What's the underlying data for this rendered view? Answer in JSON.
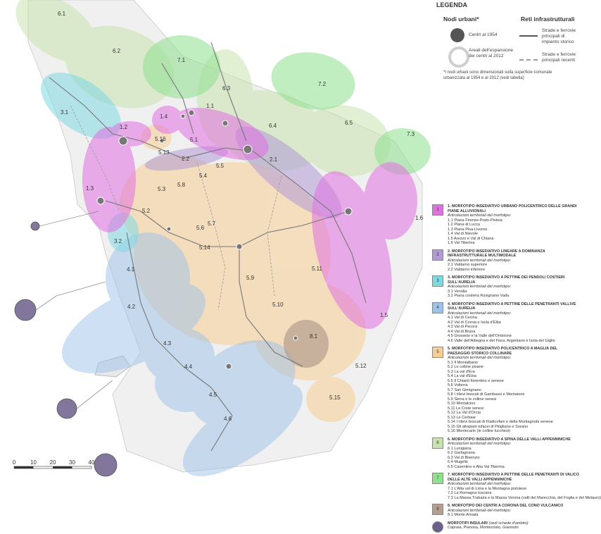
{
  "legend": {
    "title": "LEGENDA",
    "nodes_title": "Nodi urbani*",
    "nodes_1954": "Centri al 1954",
    "nodes_2012": "Areali dell'espansione dei centri al 2012",
    "networks_title": "Reti infrastrutturali",
    "networks_historic": "Strade e ferrovie principali di impianto storico",
    "networks_recent": "Strade e ferrovie principali recenti",
    "note": "*I nodi urbani sono dimensionati sulla superficie comunale urbanizzata al 1954 e al 2012 (vedi tabella)"
  },
  "scale": {
    "ticks": [
      "0",
      "10",
      "20",
      "30",
      "40"
    ]
  },
  "colors": {
    "m1": "#e070e0",
    "m2": "#b19ad6",
    "m3": "#7fd9e2",
    "m4": "#9cc2ea",
    "m5": "#f7cf95",
    "m6": "#c9e2b0",
    "m7": "#8fe08f",
    "m8": "#b59e8e",
    "insular": "#6d5f8c"
  },
  "map_labels": [
    "6.1",
    "6.2",
    "7.1",
    "6.3",
    "7.2",
    "3.1",
    "1.4",
    "1.1",
    "6.4",
    "6.5",
    "7.3",
    "1.2",
    "5.16",
    "5.13",
    "5.1",
    "2.2",
    "2.1",
    "5.5",
    "5.4",
    "1.3",
    "5.8",
    "5.3",
    "5.2",
    "5.6",
    "5.7",
    "1.6",
    "3.2",
    "5.14",
    "4.1",
    "5.11",
    "5.9",
    "4.2",
    "5.10",
    "1.5",
    "8.1",
    "4.3",
    "5.12",
    "4.4",
    "4.5",
    "5.15",
    "4.6"
  ],
  "morphotypes": [
    {
      "num": "1",
      "title": "1. MORFOTIPO INSEDIATIVO URBANO POLICENTRICO DELLE GRANDI PIANE ALLUVIONALI",
      "articulations": "Articolazioni territoriali del morfotipo:",
      "items": [
        "1.1 Piana Firenze-Prato-Pistoia",
        "1.2 Piana di Lucca",
        "1.3 Piana Pisa-Livorno",
        "1.4 Val di Nievole",
        "1.5 Arezzo e Val di Chiana",
        "1.6 Val Tiberina"
      ]
    },
    {
      "num": "2",
      "title": "2. MORFOTIPO INSEDIATIVO LINEARE A DOMINANZA INFRASTRUTTURALE MULTIMODALE",
      "articulations": "Articolazioni territoriali del morfotipo:",
      "items": [
        "2.1 Valdarno superiore",
        "2.2 Valdarno inferiore"
      ]
    },
    {
      "num": "3",
      "title": "3. MORFOTIPO INSEDIATIVO A PETTINE DEI PENDOLI COSTIERI SULL'AURELIA",
      "articulations": "Articolazioni territoriali del morfotipo:",
      "items": [
        "3.1 Versilia",
        "3.2 Piana costiera Rosignano Vada"
      ]
    },
    {
      "num": "4",
      "title": "4. MORFOTIPO INSEDIATIVO A PETTINE DELLE PENETRANTI VALLIVE SULL'AURELIA",
      "articulations": "Articolazioni territoriali del morfotipo:",
      "items": [
        "4.1 Val di Cecina",
        "4.2 Val di Cornia e Isola d'Elba",
        "4.3 Val di Pecora",
        "4.4 Val di Bruna",
        "4.5 Grosseto e la Valle dell'Ombrone",
        "4.6 Valle dell'Albegna e del Fiora, Argentario e Isola del Giglio"
      ]
    },
    {
      "num": "5",
      "title": "5. MORFOTIPO INSEDIATIVO POLICENTRICO A MAGLIA DEL PAESAGGIO STORICO COLLINARE",
      "articulations": "Articolazioni territoriali del morfotipo:",
      "items": [
        "5.1 Il Montalbano",
        "5.2 Le colline pisane",
        "5.3 La val d'Era",
        "5.4 La val d'Elsa",
        "5.5 Il Chianti fiorentino e senese",
        "5.6 Volterra",
        "5.7 San Gimignano",
        "5.8 I rilievi boscati di Gambassi e Montaione",
        "5.9 Siena e le colline senesi",
        "5.10 Montalcino",
        "5.11 Le Crete senesi",
        "5.12 La Val d'Orcia",
        "5.13 Le Cerbaie",
        "5.14 I rilievi boscati di Radicofani e della Montagnola senese",
        "5.15 Gli altopiani tufacei di Pitigliano e Sorano",
        "5.16 Montecarlo (le colline lucchesi)"
      ]
    },
    {
      "num": "6",
      "title": "6. MORFOTIPO INSEDIATIVO A SPINA DELLE VALLI APPENNINICHE",
      "articulations": "Articolazioni territoriali del morfotipo:",
      "items": [
        "6.1 Lunigiana",
        "6.2 Garfagnana",
        "6.3 Val di Bisenzio",
        "6.4 Mugello",
        "6.5 Casentino e Alta Val Tiberina"
      ]
    },
    {
      "num": "7",
      "title": "7. MORFOTIPO INSEDIATIVO A PETTINE DELLE PENETRANTI DI VALICO DELLE ALTE VALLI APPENNINICHE",
      "articulations": "Articolazioni territoriali del morfotipo:",
      "items": [
        "7.1 L'Alta val di Lima e la Montagna pistoiese",
        "7.2 La Romagna toscana",
        "7.3 La Massa Trabaria e la Massa Verona (valli del Marecchia, del Foglia e del Metauro)"
      ]
    },
    {
      "num": "8",
      "title": "8. MORFOTIPO DEI CENTRI A CORONA DEL CONO VULCANICO",
      "articulations": "Articolazioni territoriali del morfotipo:",
      "items": [
        "8.1 Monte Amiata"
      ]
    }
  ],
  "insular": {
    "title": "MORFOTIPI INSULARI",
    "note": "(vedi schede d'ambito)",
    "items": "Capraia, Pianosa, Montecristo, Giannutri"
  }
}
